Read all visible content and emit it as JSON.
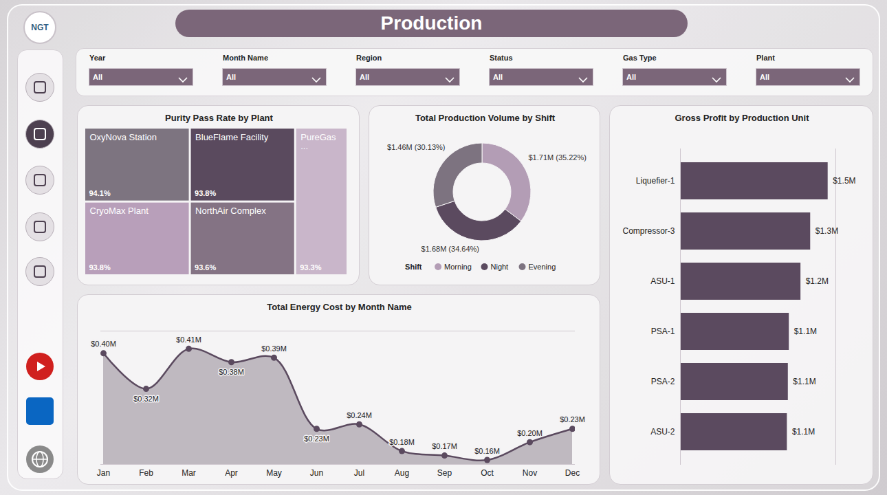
{
  "title": "Production",
  "logo": "NGT",
  "filters": [
    {
      "label": "Year",
      "value": "All"
    },
    {
      "label": "Month Name",
      "value": "All"
    },
    {
      "label": "Region",
      "value": "All"
    },
    {
      "label": "Status",
      "value": "All"
    },
    {
      "label": "Gas Type",
      "value": "All"
    },
    {
      "label": "Plant",
      "value": "All"
    }
  ],
  "chart_data": [
    {
      "type": "treemap",
      "title": "Purity Pass Rate by Plant",
      "categories": [
        "OxyNova Station",
        "CryoMax Plant",
        "BlueFlame Facility",
        "NorthAir Complex",
        "PureGas ..."
      ],
      "values": [
        94.1,
        93.8,
        93.8,
        93.6,
        93.3
      ],
      "value_labels": [
        "94.1%",
        "93.8%",
        "93.8%",
        "93.6%",
        "93.3%"
      ],
      "colors": [
        "#7d7480",
        "#b89fba",
        "#5a4a5e",
        "#847384",
        "#c9b6ca"
      ],
      "data_labels": true
    },
    {
      "type": "donut",
      "title": "Total Production Volume by Shift",
      "categories": [
        "Morning",
        "Night",
        "Evening"
      ],
      "values": [
        1.71,
        1.68,
        1.46
      ],
      "value_labels": [
        "$1.71M (35.22%)",
        "$1.68M (34.64%)",
        "$1.46M (30.13%)"
      ],
      "colors": [
        "#b39db5",
        "#5b4a5f",
        "#7d7380"
      ],
      "legend": "bottom",
      "legend_title": "Shift",
      "data_labels": true
    },
    {
      "type": "area",
      "title": "Total Energy Cost by Month Name",
      "categories": [
        "Jan",
        "Feb",
        "Mar",
        "Apr",
        "May",
        "Jun",
        "Jul",
        "Aug",
        "Sep",
        "Oct",
        "Nov",
        "Dec"
      ],
      "values": [
        0.4,
        0.32,
        0.41,
        0.38,
        0.39,
        0.23,
        0.24,
        0.18,
        0.17,
        0.16,
        0.2,
        0.23
      ],
      "value_labels": [
        "$0.40M",
        "$0.32M",
        "$0.41M",
        "$0.38M",
        "$0.39M",
        "$0.23M",
        "$0.24M",
        "$0.18M",
        "$0.17M",
        "$0.16M",
        "$0.20M",
        "$0.23M"
      ],
      "color": "#5b4a5f",
      "marker": "circle",
      "ylim": [
        0.15,
        0.45
      ],
      "yticks": [],
      "tick_labels": "x",
      "grid": false,
      "data_labels": true
    },
    {
      "type": "bar",
      "orientation": "horizontal",
      "title": "Gross Profit by Production Unit",
      "categories": [
        "Liquefier-1",
        "Compressor-3",
        "ASU-1",
        "PSA-1",
        "PSA-2",
        "ASU-2"
      ],
      "values": [
        1.52,
        1.34,
        1.24,
        1.12,
        1.11,
        1.1
      ],
      "value_labels": [
        "$1.5M",
        "$1.3M",
        "$1.2M",
        "$1.1M",
        "$1.1M",
        "$1.1M"
      ],
      "color": "#5b4a5f",
      "xlim": [
        0,
        1.6
      ],
      "xticks": [],
      "tick_labels": "y",
      "grid": false,
      "data_labels": true
    }
  ]
}
